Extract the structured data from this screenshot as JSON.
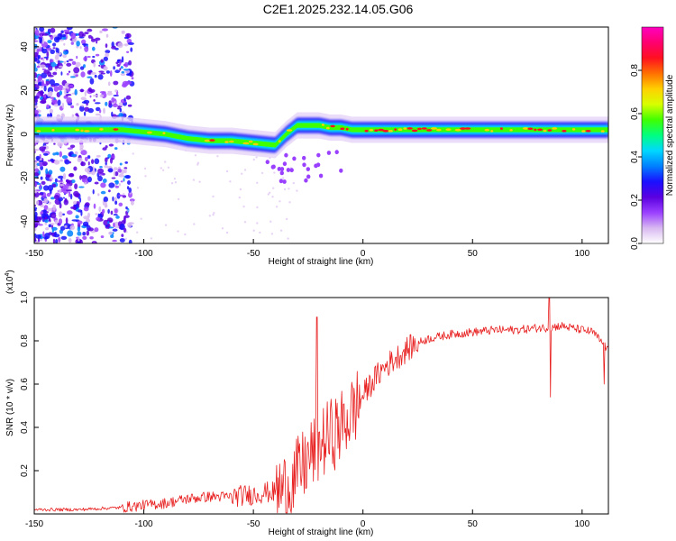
{
  "title": "C2E1.2025.232.14.05.G06",
  "chart_data": [
    {
      "type": "heatmap",
      "xlabel": "Height of straight line (km)",
      "ylabel": "Frequency (Hz)",
      "xlim": [
        -150,
        112
      ],
      "ylim": [
        -50,
        49
      ],
      "xticks": [
        "-150",
        "-100",
        "-50",
        "0",
        "50",
        "100"
      ],
      "yticks": [
        "-40",
        "-20",
        "0",
        "20",
        "40"
      ],
      "colorbar": {
        "label": "Normalized spectral amplitude",
        "range": [
          0,
          1
        ],
        "ticks": [
          "0.0",
          "0.2",
          "0.4",
          "0.6",
          "0.8"
        ],
        "colors": [
          "#ffffff",
          "#d8b8f0",
          "#9a40ff",
          "#5a00e0",
          "#1a10ff",
          "#0080ff",
          "#00d8ff",
          "#00ff80",
          "#40ff00",
          "#d8ff00",
          "#ffd000",
          "#ff7000",
          "#ff1020",
          "#ff0070",
          "#ff00c0"
        ]
      },
      "ridge": {
        "x": [
          -150,
          -140,
          -130,
          -120,
          -110,
          -100,
          -90,
          -80,
          -70,
          -60,
          -50,
          -40,
          -35,
          -30,
          -25,
          -20,
          -15,
          -10,
          -5,
          0,
          10,
          20,
          30,
          40,
          50,
          60,
          70,
          80,
          90,
          100,
          112
        ],
        "y": [
          2,
          2,
          2,
          2,
          2,
          1,
          0,
          -2,
          -3,
          -3,
          -4,
          -5,
          0,
          4,
          4,
          4,
          3,
          3,
          2,
          2,
          2,
          2,
          2,
          2,
          2,
          2,
          2,
          2,
          2,
          2,
          2
        ]
      }
    },
    {
      "type": "line",
      "xlabel": "Height of straight line (km)",
      "ylabel": "SNR (10 * v/v)",
      "y_multiplier": "(x10",
      "y_exponent": "4",
      "xlim": [
        -150,
        112
      ],
      "ylim": [
        0,
        1.0
      ],
      "xticks": [
        "-150",
        "-100",
        "-50",
        "0",
        "50",
        "100"
      ],
      "yticks": [
        "0.2",
        "0.4",
        "0.6",
        "0.8",
        "1.0"
      ],
      "series": [
        {
          "name": "SNR",
          "color": "#e82020",
          "x": [
            -150,
            -140,
            -130,
            -120,
            -110,
            -100,
            -90,
            -80,
            -70,
            -60,
            -50,
            -45,
            -40,
            -35,
            -30,
            -25,
            -20,
            -15,
            -10,
            -5,
            0,
            5,
            10,
            15,
            20,
            25,
            30,
            35,
            40,
            50,
            60,
            70,
            80,
            85,
            90,
            95,
            100,
            105,
            110,
            112
          ],
          "y": [
            0.02,
            0.02,
            0.02,
            0.025,
            0.03,
            0.04,
            0.05,
            0.07,
            0.08,
            0.08,
            0.09,
            0.1,
            0.1,
            0.12,
            0.18,
            0.25,
            0.32,
            0.36,
            0.4,
            0.47,
            0.55,
            0.62,
            0.68,
            0.72,
            0.76,
            0.79,
            0.81,
            0.82,
            0.83,
            0.84,
            0.85,
            0.85,
            0.86,
            0.86,
            0.87,
            0.86,
            0.85,
            0.84,
            0.78,
            0.75
          ],
          "spikes": [
            {
              "x": -21,
              "y": 0.91
            },
            {
              "x": 85,
              "y": 1.0
            },
            {
              "x": 85.5,
              "y": 0.54
            },
            {
              "x": 110,
              "y": 0.6
            }
          ]
        }
      ]
    }
  ]
}
